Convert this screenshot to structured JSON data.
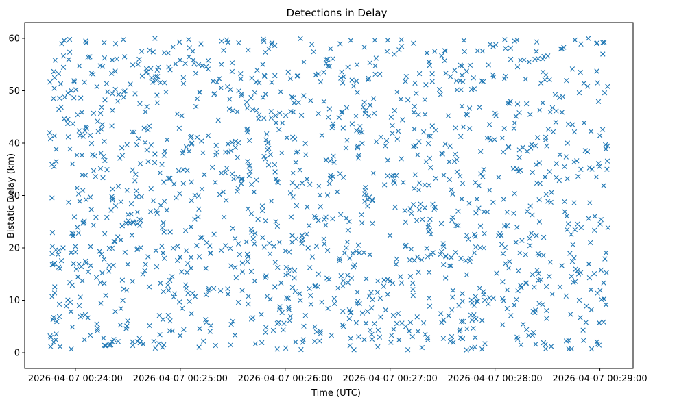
{
  "chart_data": {
    "type": "scatter",
    "title": "Detections in Delay",
    "xlabel": "Time (UTC)",
    "ylabel": "Bistatic Delay (km)",
    "marker": "x",
    "color": "#1f77b4",
    "x_tick_labels": [
      "2026-04-07 00:24:00",
      "2026-04-07 00:25:00",
      "2026-04-07 00:26:00",
      "2026-04-07 00:27:00",
      "2026-04-07 00:28:00",
      "2026-04-07 00:29:00"
    ],
    "x_tick_seconds": [
      0,
      60,
      120,
      180,
      240,
      300
    ],
    "x_range_seconds": [
      -29,
      319
    ],
    "x_data_range_seconds": [
      -15,
      305
    ],
    "ylim": [
      -3,
      63
    ],
    "y_ticks": [
      0,
      10,
      20,
      30,
      40,
      50,
      60
    ],
    "y_data_range": [
      0.5,
      60
    ],
    "point_count": 1500,
    "grid": false
  }
}
